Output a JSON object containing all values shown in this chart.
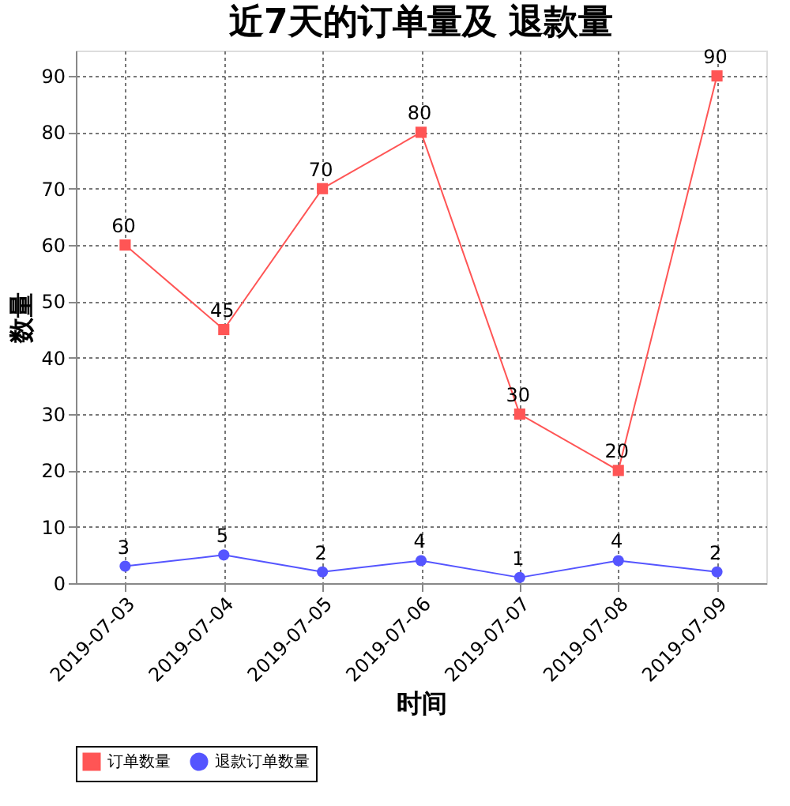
{
  "chart_data": {
    "type": "line",
    "title": "近7天的订单量及 退款量",
    "xlabel": "时间",
    "ylabel": "数量",
    "categories": [
      "2019-07-03",
      "2019-07-04",
      "2019-07-05",
      "2019-07-06",
      "2019-07-07",
      "2019-07-08",
      "2019-07-09"
    ],
    "series": [
      {
        "name": "订单数量",
        "color": "#ff5555",
        "marker": "square",
        "values": [
          60,
          45,
          70,
          80,
          30,
          20,
          90
        ]
      },
      {
        "name": "退款订单数量",
        "color": "#5555ff",
        "marker": "circle",
        "values": [
          3,
          5,
          2,
          4,
          1,
          4,
          2
        ]
      }
    ],
    "ylim": [
      0,
      94.5
    ],
    "yticks": [
      0,
      10,
      20,
      30,
      40,
      50,
      60,
      70,
      80,
      90
    ],
    "grid": true,
    "legend": "bottom",
    "data_labels": true,
    "line_style": "solid"
  }
}
